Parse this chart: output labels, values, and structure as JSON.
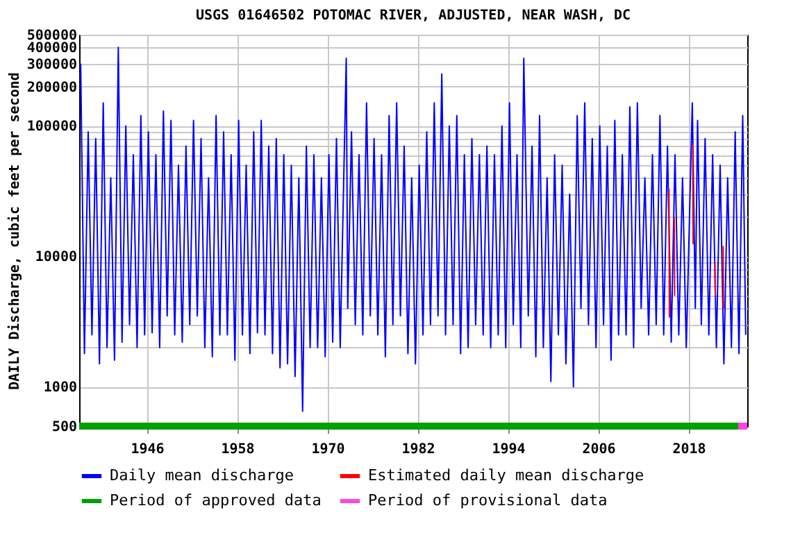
{
  "chart_data": {
    "type": "line",
    "title": "USGS 01646502 POTOMAC RIVER, ADJUSTED, NEAR WASH, DC",
    "ylabel": "DAILY Discharge, cubic feet per second",
    "log": "y",
    "grid": true,
    "legend": "bottom",
    "xlim": [
      1937,
      2025.8
    ],
    "xticks": [
      1946,
      1958,
      1970,
      1982,
      1994,
      2006,
      2018
    ],
    "ylim": [
      500,
      500000
    ],
    "yticks": [
      500,
      1000,
      {
        "value": 2000,
        "label": null
      },
      {
        "value": 3000,
        "label": null
      },
      {
        "value": 4000,
        "label": null
      },
      {
        "value": 5000,
        "label": null
      },
      {
        "value": 6000,
        "label": null
      },
      {
        "value": 7000,
        "label": null
      },
      {
        "value": 8000,
        "label": null
      },
      {
        "value": 9000,
        "label": null
      },
      10000,
      {
        "value": 20000,
        "label": null
      },
      {
        "value": 30000,
        "label": null
      },
      {
        "value": 40000,
        "label": null
      },
      {
        "value": 50000,
        "label": null
      },
      {
        "value": 60000,
        "label": null
      },
      {
        "value": 70000,
        "label": null
      },
      {
        "value": 80000,
        "label": null
      },
      {
        "value": 90000,
        "label": null
      },
      100000,
      200000,
      300000,
      400000,
      500000
    ],
    "series": [
      {
        "name": "Daily mean discharge",
        "color": "#0000ff",
        "x": [
          1937.2,
          1937.7,
          1938.2,
          1938.7,
          1939.2,
          1939.7,
          1940.2,
          1940.7,
          1941.2,
          1941.7,
          1942.2,
          1942.7,
          1943.2,
          1943.7,
          1944.2,
          1944.7,
          1945.2,
          1945.7,
          1946.2,
          1946.7,
          1947.2,
          1947.7,
          1948.2,
          1948.7,
          1949.2,
          1949.7,
          1950.2,
          1950.7,
          1951.2,
          1951.7,
          1952.2,
          1952.7,
          1953.2,
          1953.7,
          1954.2,
          1954.7,
          1955.2,
          1955.7,
          1956.2,
          1956.7,
          1957.2,
          1957.7,
          1958.2,
          1958.7,
          1959.2,
          1959.7,
          1960.2,
          1960.7,
          1961.2,
          1961.7,
          1962.2,
          1962.7,
          1963.2,
          1963.7,
          1964.2,
          1964.7,
          1965.2,
          1965.7,
          1966.2,
          1966.7,
          1967.2,
          1967.7,
          1968.2,
          1968.7,
          1969.2,
          1969.7,
          1970.2,
          1970.7,
          1971.2,
          1971.7,
          1972.5,
          1972.7,
          1973.2,
          1973.7,
          1974.2,
          1974.7,
          1975.2,
          1975.7,
          1976.2,
          1976.7,
          1977.2,
          1977.7,
          1978.2,
          1978.7,
          1979.2,
          1979.7,
          1980.2,
          1980.7,
          1981.2,
          1981.7,
          1982.2,
          1982.7,
          1983.2,
          1983.7,
          1984.2,
          1984.7,
          1985.2,
          1985.7,
          1986.2,
          1986.7,
          1987.2,
          1987.7,
          1988.2,
          1988.7,
          1989.2,
          1989.7,
          1990.2,
          1990.7,
          1991.2,
          1991.7,
          1992.2,
          1992.7,
          1993.2,
          1993.7,
          1994.2,
          1994.7,
          1995.2,
          1995.7,
          1996.1,
          1996.7,
          1997.2,
          1997.7,
          1998.2,
          1998.7,
          1999.2,
          1999.7,
          2000.2,
          2000.7,
          2001.2,
          2001.7,
          2002.2,
          2002.7,
          2003.2,
          2003.7,
          2004.2,
          2004.7,
          2005.2,
          2005.7,
          2006.2,
          2006.7,
          2007.2,
          2007.7,
          2008.2,
          2008.7,
          2009.2,
          2009.7,
          2010.2,
          2010.7,
          2011.2,
          2011.7,
          2012.2,
          2012.7,
          2013.2,
          2013.7,
          2014.2,
          2014.7,
          2015.2,
          2015.7,
          2016.2,
          2016.7,
          2017.2,
          2017.7,
          2018.5,
          2018.9,
          2019.2,
          2019.7,
          2020.2,
          2020.7,
          2021.2,
          2021.7,
          2022.2,
          2022.7,
          2023.2,
          2023.7,
          2024.2,
          2024.7,
          2025.2,
          2025.6
        ],
        "values": [
          300000,
          1800,
          90000,
          2500,
          80000,
          1500,
          150000,
          2000,
          40000,
          1600,
          400000,
          2200,
          100000,
          3000,
          60000,
          2000,
          120000,
          2500,
          90000,
          2600,
          60000,
          2000,
          130000,
          3500,
          110000,
          2500,
          50000,
          2200,
          70000,
          3000,
          110000,
          3500,
          80000,
          2000,
          40000,
          1700,
          120000,
          2500,
          90000,
          2500,
          60000,
          1600,
          110000,
          2500,
          50000,
          1800,
          90000,
          2600,
          110000,
          2500,
          70000,
          1800,
          80000,
          1400,
          60000,
          1500,
          50000,
          1200,
          40000,
          650,
          70000,
          2000,
          60000,
          2000,
          40000,
          1700,
          60000,
          2200,
          80000,
          2000,
          330000,
          4000,
          90000,
          3000,
          60000,
          2500,
          150000,
          3500,
          80000,
          2500,
          60000,
          1700,
          120000,
          3000,
          150000,
          3500,
          70000,
          1800,
          40000,
          1500,
          50000,
          2500,
          90000,
          3000,
          150000,
          3500,
          250000,
          2500,
          100000,
          3000,
          120000,
          1800,
          60000,
          2000,
          80000,
          3000,
          60000,
          2500,
          70000,
          2000,
          60000,
          2500,
          100000,
          2000,
          150000,
          3000,
          60000,
          2000,
          330000,
          3500,
          70000,
          1700,
          120000,
          2000,
          40000,
          1100,
          60000,
          2500,
          50000,
          1500,
          30000,
          1000,
          120000,
          4000,
          150000,
          3000,
          80000,
          2000,
          100000,
          3000,
          70000,
          1600,
          110000,
          2500,
          60000,
          2500,
          140000,
          2000,
          150000,
          4000,
          40000,
          2500,
          60000,
          3000,
          120000,
          2500,
          70000,
          2200,
          60000,
          2500,
          40000,
          2000,
          150000,
          4000,
          110000,
          3000,
          80000,
          2500,
          60000,
          2000,
          50000,
          1500,
          40000,
          2000,
          90000,
          1800,
          120000,
          2500
        ]
      },
      {
        "name": "Estimated daily mean discharge",
        "color": "#ff0000",
        "x": [
          2015.4,
          2015.45,
          2015.5,
          2016.1,
          2016.15,
          2016.2,
          2018.55,
          2018.6,
          2018.65,
          2021.5,
          2021.55,
          2021.6,
          2022.6,
          2022.65
        ],
        "values": [
          33000,
          3400,
          null,
          20000,
          5000,
          null,
          72000,
          12400,
          null,
          9000,
          5000,
          null,
          12000,
          4000
        ]
      },
      {
        "name": "Period of approved data",
        "color": "#00a000",
        "x": [
          1937,
          2024.6
        ],
        "values": [
          500,
          500
        ]
      },
      {
        "name": "Period of provisional data",
        "color": "#ff44dd",
        "x": [
          2024.6,
          2025.8
        ],
        "values": [
          500,
          500
        ]
      }
    ]
  }
}
